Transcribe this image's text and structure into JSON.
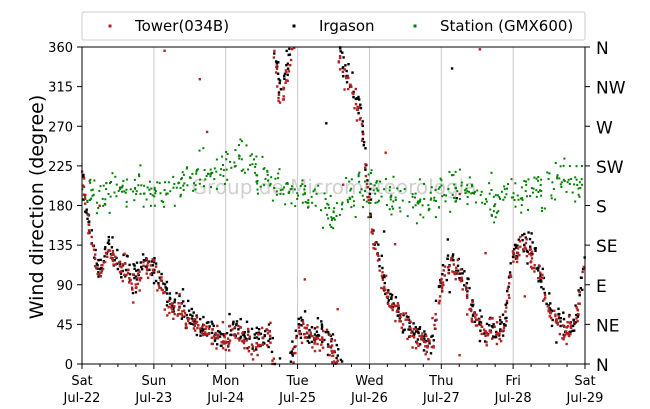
{
  "chart_data": {
    "type": "scatter",
    "title": "",
    "ylabel": "Wind direction (degree)",
    "xlabel": "",
    "ylim": [
      0,
      360
    ],
    "yticks": [
      0,
      45,
      90,
      135,
      180,
      225,
      270,
      315,
      360
    ],
    "compass_labels": [
      "N",
      "NE",
      "E",
      "SE",
      "S",
      "SW",
      "W",
      "NW",
      "N"
    ],
    "xlim": [
      "2017-07-22",
      "2017-07-29"
    ],
    "xticks": [
      {
        "day": "Sat",
        "date": "Jul-22"
      },
      {
        "day": "Sun",
        "date": "Jul-23"
      },
      {
        "day": "Mon",
        "date": "Jul-24"
      },
      {
        "day": "Tue",
        "date": "Jul-25"
      },
      {
        "day": "Wed",
        "date": "Jul-26"
      },
      {
        "day": "Thu",
        "date": "Jul-27"
      },
      {
        "day": "Fri",
        "date": "Jul-28"
      },
      {
        "day": "Sat",
        "date": "Jul-29"
      }
    ],
    "grid": "vertical",
    "legend_position": "top",
    "watermark": "Group de Micrometeorologia",
    "series": [
      {
        "name": "Tower(034B)",
        "color": "#b22222",
        "points": [
          [
            "2017-07-22T00:00",
            220
          ],
          [
            "2017-07-22T02:00",
            170
          ],
          [
            "2017-07-22T04:00",
            120
          ],
          [
            "2017-07-22T06:00",
            95
          ],
          [
            "2017-07-22T09:00",
            130
          ],
          [
            "2017-07-22T12:00",
            110
          ],
          [
            "2017-07-22T15:00",
            100
          ],
          [
            "2017-07-22T18:00",
            85
          ],
          [
            "2017-07-22T21:00",
            110
          ],
          [
            "2017-07-23T00:00",
            105
          ],
          [
            "2017-07-23T03:00",
            80
          ],
          [
            "2017-07-23T06:00",
            65
          ],
          [
            "2017-07-23T09:00",
            60
          ],
          [
            "2017-07-23T12:00",
            50
          ],
          [
            "2017-07-23T15:00",
            40
          ],
          [
            "2017-07-23T18:00",
            35
          ],
          [
            "2017-07-23T21:00",
            30
          ],
          [
            "2017-07-24T00:00",
            25
          ],
          [
            "2017-07-24T03:00",
            35
          ],
          [
            "2017-07-24T06:00",
            30
          ],
          [
            "2017-07-24T09:00",
            20
          ],
          [
            "2017-07-24T12:00",
            25
          ],
          [
            "2017-07-24T15:00",
            30
          ],
          [
            "2017-07-24T18:00",
            295
          ],
          [
            "2017-07-24T21:00",
            330
          ],
          [
            "2017-07-25T00:00",
            40
          ],
          [
            "2017-07-25T03:00",
            35
          ],
          [
            "2017-07-25T06:00",
            25
          ],
          [
            "2017-07-25T09:00",
            30
          ],
          [
            "2017-07-25T12:00",
            20
          ],
          [
            "2017-07-25T15:00",
            330
          ],
          [
            "2017-07-25T18:00",
            310
          ],
          [
            "2017-07-25T21:00",
            280
          ],
          [
            "2017-07-26T00:00",
            180
          ],
          [
            "2017-07-26T03:00",
            110
          ],
          [
            "2017-07-26T06:00",
            75
          ],
          [
            "2017-07-26T09:00",
            60
          ],
          [
            "2017-07-26T12:00",
            45
          ],
          [
            "2017-07-26T15:00",
            30
          ],
          [
            "2017-07-26T18:00",
            25
          ],
          [
            "2017-07-26T21:00",
            20
          ],
          [
            "2017-07-27T00:00",
            90
          ],
          [
            "2017-07-27T03:00",
            115
          ],
          [
            "2017-07-27T06:00",
            105
          ],
          [
            "2017-07-27T09:00",
            70
          ],
          [
            "2017-07-27T12:00",
            45
          ],
          [
            "2017-07-27T15:00",
            35
          ],
          [
            "2017-07-27T18:00",
            30
          ],
          [
            "2017-07-27T21:00",
            40
          ],
          [
            "2017-07-28T00:00",
            120
          ],
          [
            "2017-07-28T03:00",
            140
          ],
          [
            "2017-07-28T06:00",
            120
          ],
          [
            "2017-07-28T09:00",
            100
          ],
          [
            "2017-07-28T12:00",
            60
          ],
          [
            "2017-07-28T15:00",
            45
          ],
          [
            "2017-07-28T18:00",
            35
          ],
          [
            "2017-07-28T21:00",
            50
          ],
          [
            "2017-07-29T00:00",
            110
          ]
        ]
      },
      {
        "name": "Irgason",
        "color": "#000000",
        "points": [
          [
            "2017-07-22T00:00",
            210
          ],
          [
            "2017-07-22T02:00",
            165
          ],
          [
            "2017-07-22T04:00",
            130
          ],
          [
            "2017-07-22T06:00",
            110
          ],
          [
            "2017-07-22T09:00",
            140
          ],
          [
            "2017-07-22T12:00",
            115
          ],
          [
            "2017-07-22T15:00",
            105
          ],
          [
            "2017-07-22T18:00",
            95
          ],
          [
            "2017-07-22T21:00",
            115
          ],
          [
            "2017-07-23T00:00",
            110
          ],
          [
            "2017-07-23T03:00",
            90
          ],
          [
            "2017-07-23T06:00",
            75
          ],
          [
            "2017-07-23T09:00",
            65
          ],
          [
            "2017-07-23T12:00",
            55
          ],
          [
            "2017-07-23T15:00",
            45
          ],
          [
            "2017-07-23T18:00",
            40
          ],
          [
            "2017-07-23T21:00",
            35
          ],
          [
            "2017-07-24T00:00",
            30
          ],
          [
            "2017-07-24T03:00",
            40
          ],
          [
            "2017-07-24T06:00",
            35
          ],
          [
            "2017-07-24T09:00",
            25
          ],
          [
            "2017-07-24T12:00",
            30
          ],
          [
            "2017-07-24T15:00",
            35
          ],
          [
            "2017-07-24T18:00",
            320
          ],
          [
            "2017-07-24T21:00",
            345
          ],
          [
            "2017-07-25T00:00",
            45
          ],
          [
            "2017-07-25T03:00",
            40
          ],
          [
            "2017-07-25T06:00",
            30
          ],
          [
            "2017-07-25T09:00",
            35
          ],
          [
            "2017-07-25T12:00",
            25
          ],
          [
            "2017-07-25T15:00",
            345
          ],
          [
            "2017-07-25T18:00",
            320
          ],
          [
            "2017-07-25T21:00",
            290
          ],
          [
            "2017-07-26T00:00",
            190
          ],
          [
            "2017-07-26T03:00",
            120
          ],
          [
            "2017-07-26T06:00",
            80
          ],
          [
            "2017-07-26T09:00",
            65
          ],
          [
            "2017-07-26T12:00",
            50
          ],
          [
            "2017-07-26T15:00",
            35
          ],
          [
            "2017-07-26T18:00",
            30
          ],
          [
            "2017-07-26T21:00",
            25
          ],
          [
            "2017-07-27T00:00",
            100
          ],
          [
            "2017-07-27T03:00",
            125
          ],
          [
            "2017-07-27T06:00",
            110
          ],
          [
            "2017-07-27T09:00",
            80
          ],
          [
            "2017-07-27T12:00",
            50
          ],
          [
            "2017-07-27T15:00",
            40
          ],
          [
            "2017-07-27T18:00",
            35
          ],
          [
            "2017-07-27T21:00",
            45
          ],
          [
            "2017-07-28T00:00",
            130
          ],
          [
            "2017-07-28T03:00",
            145
          ],
          [
            "2017-07-28T06:00",
            125
          ],
          [
            "2017-07-28T09:00",
            105
          ],
          [
            "2017-07-28T12:00",
            65
          ],
          [
            "2017-07-28T15:00",
            50
          ],
          [
            "2017-07-28T18:00",
            40
          ],
          [
            "2017-07-28T21:00",
            55
          ],
          [
            "2017-07-29T00:00",
            120
          ]
        ]
      },
      {
        "name": "Station (GMX600)",
        "color": "#008000",
        "points": [
          [
            "2017-07-22T00:00",
            195
          ],
          [
            "2017-07-22T06:00",
            190
          ],
          [
            "2017-07-22T12:00",
            200
          ],
          [
            "2017-07-22T18:00",
            205
          ],
          [
            "2017-07-23T00:00",
            190
          ],
          [
            "2017-07-23T06:00",
            200
          ],
          [
            "2017-07-23T12:00",
            210
          ],
          [
            "2017-07-23T18:00",
            215
          ],
          [
            "2017-07-24T00:00",
            225
          ],
          [
            "2017-07-24T06:00",
            235
          ],
          [
            "2017-07-24T12:00",
            215
          ],
          [
            "2017-07-24T18:00",
            200
          ],
          [
            "2017-07-25T00:00",
            195
          ],
          [
            "2017-07-25T06:00",
            185
          ],
          [
            "2017-07-25T12:00",
            175
          ],
          [
            "2017-07-25T18:00",
            190
          ],
          [
            "2017-07-26T00:00",
            200
          ],
          [
            "2017-07-26T06:00",
            190
          ],
          [
            "2017-07-26T12:00",
            185
          ],
          [
            "2017-07-26T18:00",
            180
          ],
          [
            "2017-07-27T00:00",
            195
          ],
          [
            "2017-07-27T06:00",
            200
          ],
          [
            "2017-07-27T12:00",
            190
          ],
          [
            "2017-07-27T18:00",
            185
          ],
          [
            "2017-07-28T00:00",
            190
          ],
          [
            "2017-07-28T06:00",
            195
          ],
          [
            "2017-07-28T12:00",
            205
          ],
          [
            "2017-07-28T18:00",
            210
          ],
          [
            "2017-07-29T00:00",
            200
          ]
        ]
      }
    ]
  }
}
